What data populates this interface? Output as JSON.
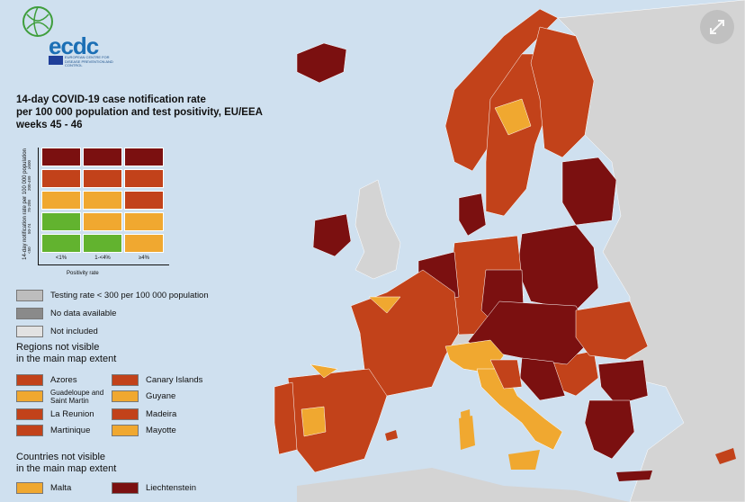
{
  "logo": {
    "text": "ecdc",
    "subtitle": "EUROPEAN CENTRE FOR DISEASE PREVENTION AND CONTROL"
  },
  "title": {
    "line1": "14-day COVID-19 case notification rate",
    "line2": "per 100 000 population and test positivity, EU/EEA",
    "line3": "weeks 45 - 46"
  },
  "matrix": {
    "ylabel": "14-day notification rate per 100 000 population",
    "xlabel": "Positivity rate",
    "yticks": [
      "≥500",
      "200-499",
      "75-200",
      "50-74",
      "<50"
    ],
    "xticks": [
      "<1%",
      "1-<4%",
      "≥4%"
    ],
    "rows": [
      [
        "#7b1010",
        "#7b1010",
        "#7b1010"
      ],
      [
        "#c2421a",
        "#c2421a",
        "#c2421a"
      ],
      [
        "#f0a830",
        "#f0a830",
        "#c2421a"
      ],
      [
        "#62b32f",
        "#f0a830",
        "#f0a830"
      ],
      [
        "#62b32f",
        "#62b32f",
        "#f0a830"
      ]
    ]
  },
  "legend": {
    "status": [
      {
        "label": "Testing rate < 300 per 100 000 population",
        "color": "#bdbdbd"
      },
      {
        "label": "No data available",
        "color": "#8a8a8a"
      },
      {
        "label": "Not included",
        "color": "#e2e2e2"
      }
    ],
    "regions_heading_1": "Regions not visible",
    "regions_heading_2": "in the main map extent",
    "regions_left": [
      {
        "label": "Azores",
        "color": "#c2421a"
      },
      {
        "label": "Guadeloupe and Saint Martin",
        "color": "#f0a830"
      },
      {
        "label": "La Reunion",
        "color": "#c2421a"
      },
      {
        "label": "Martinique",
        "color": "#c2421a"
      }
    ],
    "regions_right": [
      {
        "label": "Canary Islands",
        "color": "#c2421a"
      },
      {
        "label": "Guyane",
        "color": "#f0a830"
      },
      {
        "label": "Madeira",
        "color": "#c2421a"
      },
      {
        "label": "Mayotte",
        "color": "#f0a830"
      }
    ],
    "countries_heading_1": "Countries not visible",
    "countries_heading_2": "in the main map extent",
    "countries": [
      {
        "label": "Malta",
        "color": "#f0a830"
      },
      {
        "label": "Liechtenstein",
        "color": "#7b1010"
      }
    ]
  },
  "colors": {
    "sea": "#cfe0ef",
    "non_eu_land": "#d4d4d4",
    "dark_red": "#7b1010",
    "red": "#c2421a",
    "orange": "#f0a830",
    "green": "#62b32f"
  }
}
